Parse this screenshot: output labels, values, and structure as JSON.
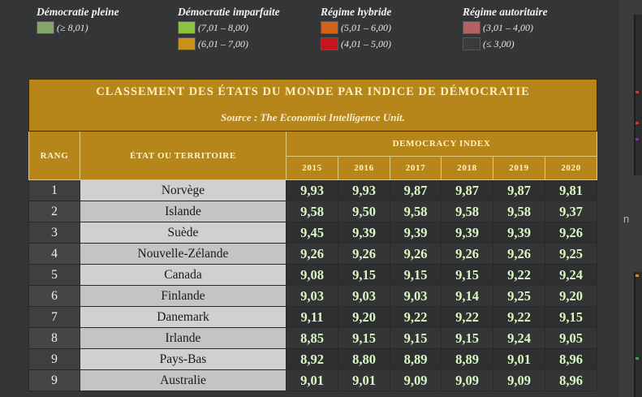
{
  "legend": [
    {
      "title": "Démocratie pleine",
      "items": [
        {
          "range": "(≥ 8,01)",
          "color": "#84a66b"
        }
      ]
    },
    {
      "title": "Démocratie imparfaite",
      "items": [
        {
          "range": "(7,01 – 8,00)",
          "color": "#8cc43f"
        },
        {
          "range": "(6,01 – 7,00)",
          "color": "#c8921c"
        }
      ]
    },
    {
      "title": "Régime hybride",
      "items": [
        {
          "range": "(5,01 – 6,00)",
          "color": "#d2621a"
        },
        {
          "range": "(4,01 – 5,00)",
          "color": "#c8141a"
        }
      ]
    },
    {
      "title": "Régime autoritaire",
      "items": [
        {
          "range": "(3,01 – 4,00)",
          "color": "#b56062"
        },
        {
          "range": "(≤ 3,00)",
          "color": "#3b3b3b"
        }
      ]
    }
  ],
  "table": {
    "title": "CLASSEMENT DES ÉTATS DU MONDE PAR INDICE DE DÉMOCRATIE",
    "source": "Source : The Economist Intelligence Unit.",
    "col_rank": "RANG",
    "col_state": "ÉTAT OU TERRITOIRE",
    "col_index": "DEMOCRACY INDEX",
    "years": [
      "2015",
      "2016",
      "2017",
      "2018",
      "2019",
      "2020"
    ],
    "rows": [
      {
        "rank": "1",
        "name": "Norvège",
        "values": [
          "9,93",
          "9,93",
          "9,87",
          "9,87",
          "9,87",
          "9,81"
        ]
      },
      {
        "rank": "2",
        "name": "Islande",
        "values": [
          "9,58",
          "9,50",
          "9,58",
          "9,58",
          "9,58",
          "9,37"
        ]
      },
      {
        "rank": "3",
        "name": "Suède",
        "values": [
          "9,45",
          "9,39",
          "9,39",
          "9,39",
          "9,39",
          "9,26"
        ]
      },
      {
        "rank": "4",
        "name": "Nouvelle-Zélande",
        "values": [
          "9,26",
          "9,26",
          "9,26",
          "9,26",
          "9,26",
          "9,25"
        ]
      },
      {
        "rank": "5",
        "name": "Canada",
        "values": [
          "9,08",
          "9,15",
          "9,15",
          "9,15",
          "9,22",
          "9,24"
        ]
      },
      {
        "rank": "6",
        "name": "Finlande",
        "values": [
          "9,03",
          "9,03",
          "9,03",
          "9,14",
          "9,25",
          "9,20"
        ]
      },
      {
        "rank": "7",
        "name": "Danemark",
        "values": [
          "9,11",
          "9,20",
          "9,22",
          "9,22",
          "9,22",
          "9,15"
        ]
      },
      {
        "rank": "8",
        "name": "Irlande",
        "values": [
          "8,85",
          "9,15",
          "9,15",
          "9,15",
          "9,24",
          "9,05"
        ]
      },
      {
        "rank": "9",
        "name": "Pays-Bas",
        "values": [
          "8,92",
          "8,80",
          "8,89",
          "8,89",
          "9,01",
          "8,96"
        ]
      },
      {
        "rank": "9",
        "name": "Australie",
        "values": [
          "9,01",
          "9,01",
          "9,09",
          "9,09",
          "9,09",
          "8,96"
        ]
      }
    ]
  },
  "right_strip": {
    "letter": "n"
  }
}
